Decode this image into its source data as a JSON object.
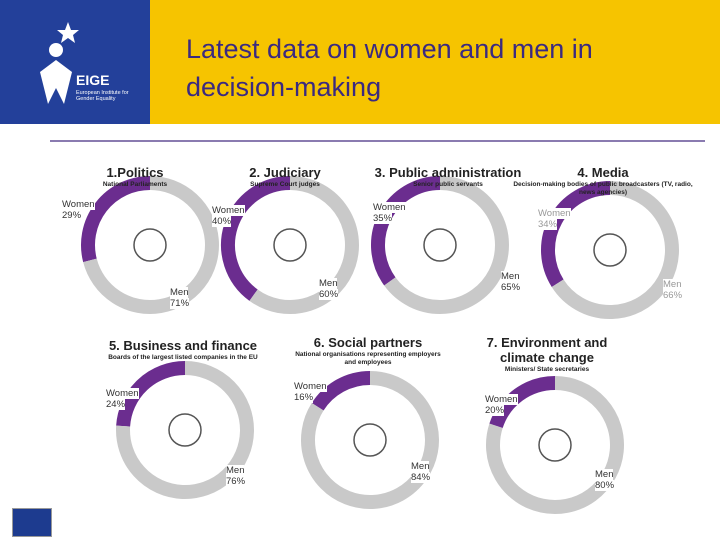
{
  "header": {
    "title": "Latest data on women and men in decision-making",
    "logo": {
      "name": "EIGE",
      "caption": "European Institute for Gender Equality"
    }
  },
  "chart_data": [
    {
      "type": "pie",
      "title": "1.Politics",
      "subtitle": "National Parliaments",
      "categories": [
        "Women",
        "Men"
      ],
      "values": [
        29,
        71
      ],
      "value_labels": [
        "29%",
        "71%"
      ],
      "colors": [
        "#6b2d8f",
        "#c9c9c9"
      ]
    },
    {
      "type": "pie",
      "title": "2. Judiciary",
      "subtitle": "Supreme Court judges",
      "categories": [
        "Women",
        "Men"
      ],
      "values": [
        40,
        60
      ],
      "value_labels": [
        "40%",
        "60%"
      ],
      "colors": [
        "#6b2d8f",
        "#c9c9c9"
      ]
    },
    {
      "type": "pie",
      "title": "3. Public administration",
      "subtitle": "Senior public servants",
      "categories": [
        "Women",
        "Men"
      ],
      "values": [
        35,
        65
      ],
      "value_labels": [
        "35%",
        "65%"
      ],
      "colors": [
        "#6b2d8f",
        "#c9c9c9"
      ]
    },
    {
      "type": "pie",
      "title": "4. Media",
      "subtitle": "Decision-making bodies of public broadcasters (TV, radio, news agencies)",
      "categories": [
        "Women",
        "Men"
      ],
      "values": [
        34,
        66
      ],
      "value_labels": [
        "34%",
        "66%"
      ],
      "colors": [
        "#6b2d8f",
        "#c9c9c9"
      ]
    },
    {
      "type": "pie",
      "title": "5. Business and finance",
      "subtitle": "Boards of the largest listed companies in the EU",
      "categories": [
        "Women",
        "Men"
      ],
      "values": [
        24,
        76
      ],
      "value_labels": [
        "24%",
        "76%"
      ],
      "colors": [
        "#6b2d8f",
        "#c9c9c9"
      ]
    },
    {
      "type": "pie",
      "title": "6. Social partners",
      "subtitle": "National organisations representing employers and employees",
      "categories": [
        "Women",
        "Men"
      ],
      "values": [
        16,
        84
      ],
      "value_labels": [
        "16%",
        "84%"
      ],
      "colors": [
        "#6b2d8f",
        "#c9c9c9"
      ]
    },
    {
      "type": "pie",
      "title": "7. Environment and climate change",
      "subtitle": "Ministers/ State secretaries",
      "categories": [
        "Women",
        "Men"
      ],
      "values": [
        20,
        80
      ],
      "value_labels": [
        "20%",
        "80%"
      ],
      "colors": [
        "#6b2d8f",
        "#c9c9c9"
      ]
    }
  ]
}
